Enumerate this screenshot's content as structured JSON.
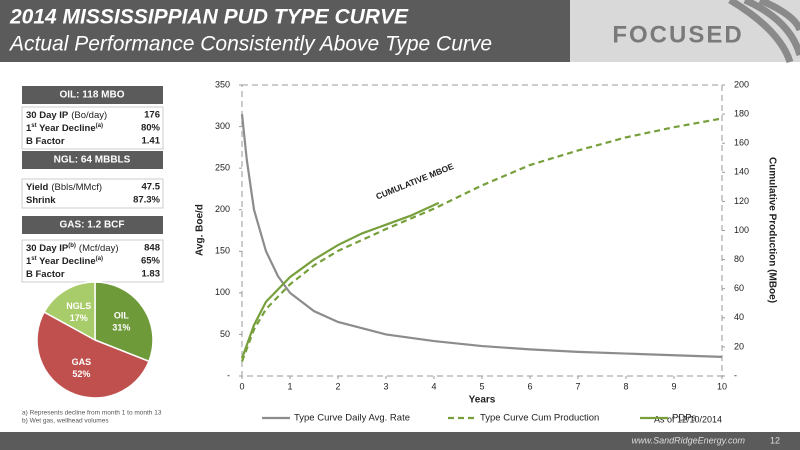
{
  "header": {
    "title": "2014 MISSISSIPPIAN PUD TYPE CURVE",
    "subtitle": "Actual Performance Consistently Above Type Curve",
    "logo": "FOCUSED"
  },
  "panels": [
    {
      "title": "OIL: 118 MBO",
      "rows": [
        {
          "label": [
            {
              "text": "30 Day IP"
            }
          ],
          "unit": "(Bo/day)",
          "value": "176"
        },
        {
          "label": [
            {
              "text": "1"
            },
            {
              "sup": "st"
            },
            {
              "text": " Year Decline"
            },
            {
              "sup": "(a)"
            }
          ],
          "value": "80%"
        },
        {
          "label": [
            {
              "text": "B Factor"
            }
          ],
          "value": "1.41"
        }
      ]
    },
    {
      "title": "NGL: 64 MBBLS",
      "rows": [
        {
          "label": [
            {
              "text": "Yield"
            }
          ],
          "unit": "(Bbls/MMcf)",
          "value": "47.5"
        },
        {
          "label": [
            {
              "text": "Shrink"
            }
          ],
          "value": "87.3%"
        }
      ]
    },
    {
      "title": "GAS: 1.2 BCF",
      "rows": [
        {
          "label": [
            {
              "text": "30 Day IP"
            },
            {
              "sup": "(b)"
            }
          ],
          "unit": "(Mcf/day)",
          "value": "848"
        },
        {
          "label": [
            {
              "text": "1"
            },
            {
              "sup": "st"
            },
            {
              "text": " Year Decline"
            },
            {
              "sup": "(a)"
            }
          ],
          "value": "65%"
        },
        {
          "label": [
            {
              "text": "B Factor"
            }
          ],
          "value": "1.83"
        }
      ]
    }
  ],
  "footnotes": [
    "a)  Represents decline from month 1 to month 13",
    "b)  Wet gas, wellhead volumes"
  ],
  "footer": {
    "url": "www.SandRidgeEnergy.com",
    "page": "12"
  },
  "as_of": "As of 12/10/2014",
  "chart_data": [
    {
      "type": "line",
      "x_label": "Years",
      "y_label": "Avg. Boe/d",
      "y2_label": "Cumulative Production (MBoe)",
      "annotation": "CUMULATIVE MBOE",
      "xlim": [
        0,
        10
      ],
      "xticks": [
        0,
        1,
        2,
        3,
        4,
        5,
        6,
        7,
        8,
        9,
        10
      ],
      "ylim": [
        0,
        350
      ],
      "yticks": [
        {
          "value": 0,
          "label": "-"
        },
        50,
        100,
        150,
        200,
        250,
        300,
        350
      ],
      "y2lim": [
        0,
        200
      ],
      "y2ticks": [
        {
          "value": 0,
          "label": "-"
        },
        20,
        40,
        60,
        80,
        100,
        120,
        140,
        160,
        180,
        200
      ],
      "series": [
        {
          "name": "Type Curve Daily Avg. Rate",
          "color": "#8c8c8c",
          "style": "solid",
          "x": [
            0,
            0.1,
            0.25,
            0.5,
            0.75,
            1,
            1.5,
            2,
            3,
            4,
            5,
            6,
            7,
            8,
            9,
            10
          ],
          "values": [
            315,
            260,
            200,
            150,
            120,
            100,
            78,
            65,
            50,
            42,
            36,
            32,
            29,
            27,
            25,
            23
          ]
        },
        {
          "name": "Type Curve Cum Production",
          "color": "#77a03c",
          "style": "dashed",
          "axis": "y2",
          "x": [
            0,
            0.25,
            0.5,
            1,
            1.5,
            2,
            3,
            4,
            5,
            6,
            7,
            8,
            9,
            10
          ],
          "values": [
            10,
            32,
            46,
            63,
            76,
            86,
            101,
            115,
            131,
            145,
            155,
            164,
            171,
            177
          ]
        },
        {
          "name": "PDPs",
          "color": "#77a03c",
          "style": "solid",
          "axis": "y2",
          "x": [
            0,
            0.25,
            0.5,
            1,
            1.5,
            2,
            2.5,
            3,
            3.5,
            4.1
          ],
          "values": [
            12,
            35,
            51,
            68,
            80,
            90,
            98,
            104,
            110,
            119
          ]
        }
      ]
    },
    {
      "type": "pie",
      "categories": [
        "OIL",
        "GAS",
        "NGLS"
      ],
      "values": [
        31,
        52,
        17
      ],
      "value_labels": [
        "31%",
        "52%",
        "17%"
      ],
      "colors": [
        "#6f9a3a",
        "#c0504d",
        "#a9cc6a"
      ]
    }
  ]
}
